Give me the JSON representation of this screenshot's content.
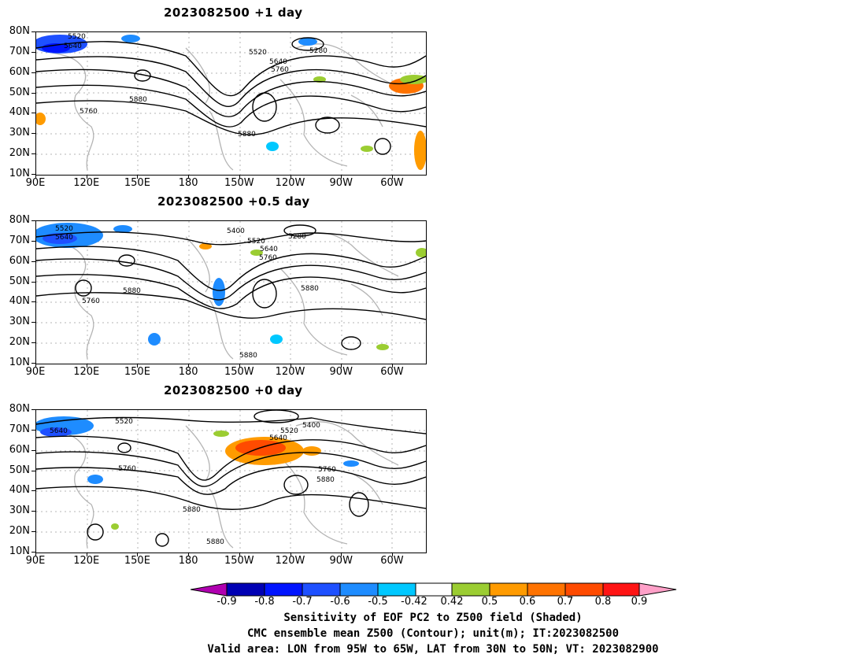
{
  "panels": [
    {
      "title": "2023082500  +1 day",
      "contour_labels": [
        "5520",
        "5640",
        "5520",
        "5640",
        "5760",
        "5280",
        "5880",
        "5760",
        "5880"
      ]
    },
    {
      "title": "2023082500  +0.5 day",
      "contour_labels": [
        "5520",
        "5640",
        "5400",
        "5520",
        "5280",
        "5640",
        "5760",
        "5880",
        "5760",
        "5880",
        "5880"
      ]
    },
    {
      "title": "2023082500  +0 day",
      "contour_labels": [
        "5520",
        "5640",
        "5400",
        "5520",
        "5640",
        "5760",
        "5760",
        "5880",
        "5880",
        "5880"
      ]
    }
  ],
  "lat_labels": [
    "80N",
    "70N",
    "60N",
    "50N",
    "40N",
    "30N",
    "20N",
    "10N"
  ],
  "lon_labels": [
    "90E",
    "120E",
    "150E",
    "180",
    "150W",
    "120W",
    "90W",
    "60W"
  ],
  "colorbar": {
    "labels": [
      "-0.9",
      "-0.8",
      "-0.7",
      "-0.6",
      "-0.5",
      "-0.42",
      "0.42",
      "0.5",
      "0.6",
      "0.7",
      "0.8",
      "0.9"
    ],
    "colors": [
      "#b000b0",
      "#0000b4",
      "#0014ff",
      "#1e50ff",
      "#1e8cff",
      "#00c8ff",
      "#ffffff",
      "#9bcd32",
      "#ff9b00",
      "#ff7300",
      "#ff4b00",
      "#ff1414",
      "#ffa0c8"
    ]
  },
  "captions": [
    "Sensitivity of EOF PC2 to Z500 field (Shaded)",
    "CMC ensemble mean Z500 (Contour); unit(m); IT:2023082500",
    "Valid area: LON from 95W to 65W, LAT from 30N to 50N; VT: 2023082900"
  ]
}
